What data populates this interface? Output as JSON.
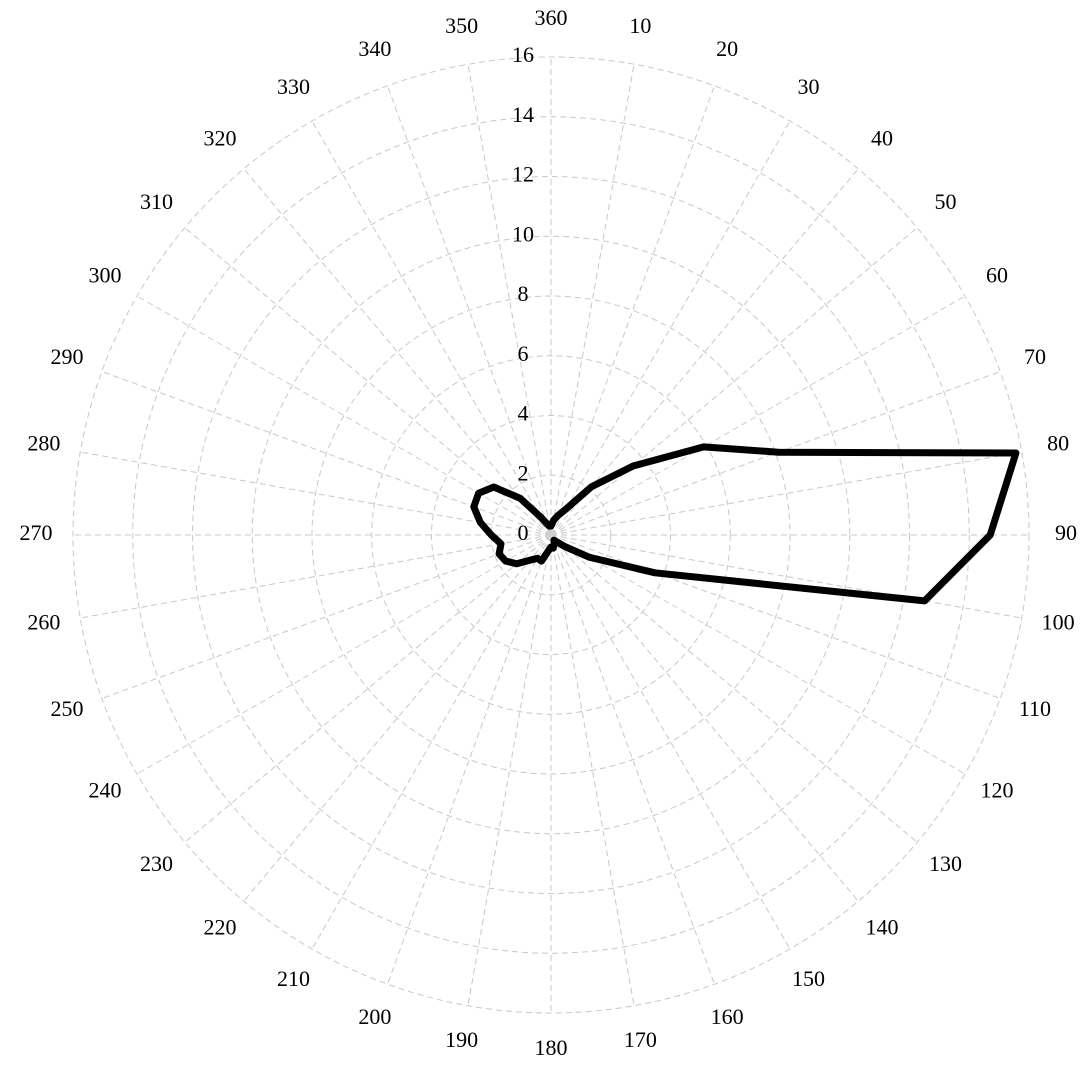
{
  "chart_data": {
    "type": "polar",
    "theta": [
      0,
      10,
      20,
      30,
      40,
      50,
      60,
      70,
      80,
      90,
      100,
      110,
      120,
      130,
      140,
      150,
      160,
      170,
      180,
      190,
      200,
      210,
      220,
      230,
      240,
      250,
      260,
      270,
      280,
      290,
      300,
      310,
      320,
      330,
      340,
      350
    ],
    "values": [
      0.3,
      0.5,
      0.7,
      1.0,
      2.1,
      3.6,
      5.9,
      8.1,
      15.8,
      14.7,
      12.7,
      3.7,
      1.5,
      0.6,
      0.3,
      0.2,
      0.3,
      0.45,
      0.4,
      0.55,
      0.93,
      0.9,
      1.1,
      1.5,
      1.75,
      1.85,
      1.7,
      2.0,
      2.4,
      2.75,
      2.8,
      2.5,
      1.6,
      0.7,
      0.4,
      0.3
    ],
    "color": "#000000",
    "rlim": [
      0,
      16
    ],
    "rticks": [
      0,
      2,
      4,
      6,
      8,
      10,
      12,
      14,
      16
    ],
    "thetaticks": [
      {
        "value": 0,
        "label": "360"
      },
      10,
      20,
      30,
      40,
      50,
      60,
      70,
      80,
      90,
      100,
      110,
      120,
      130,
      140,
      150,
      160,
      170,
      180,
      190,
      200,
      210,
      220,
      230,
      240,
      250,
      260,
      270,
      280,
      290,
      300,
      310,
      320,
      330,
      340,
      350
    ],
    "grid": true
  }
}
